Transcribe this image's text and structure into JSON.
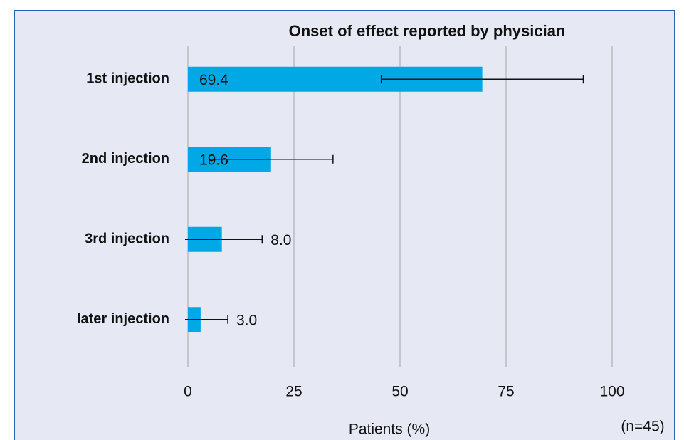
{
  "chart_data": {
    "type": "hbar",
    "title": "Onset of effect reported by physician",
    "categories": [
      "1st injection",
      "2nd injection",
      "3rd injection",
      "later injection"
    ],
    "values": [
      69.4,
      19.6,
      8.0,
      3.0
    ],
    "value_labels": [
      "69.4",
      "19.6",
      "8.0",
      "3.0"
    ],
    "errors": [
      23.8,
      14.6,
      9.5,
      6.4
    ],
    "color": "#00a9e6",
    "xlabel": "Patients (%)",
    "note": "(n=45)",
    "xlim": [
      0,
      100
    ],
    "xticks": [
      0,
      25,
      50,
      75,
      100
    ],
    "grid": true
  }
}
